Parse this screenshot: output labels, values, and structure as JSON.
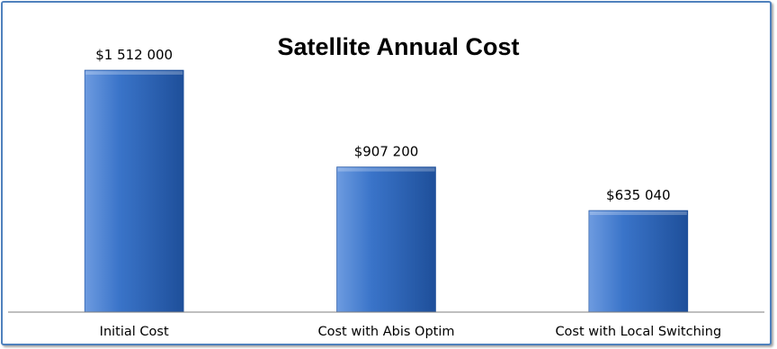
{
  "chart_data": {
    "type": "bar",
    "title": "Satellite Annual Cost",
    "categories": [
      "Initial Cost",
      "Cost with Abis Optim",
      "Cost with Local Switching"
    ],
    "values": [
      1512000,
      907200,
      635040
    ],
    "data_labels": [
      "$1 512 000",
      "$907 200",
      "$635 040"
    ],
    "xlabel": "",
    "ylabel": "",
    "ylim": [
      0,
      1700000
    ],
    "grid": false,
    "legend": "none",
    "colors": {
      "bar_light": "#6d9be0",
      "bar_mid": "#3a74c9",
      "bar_dark": "#1e4f9a",
      "frame": "#4f81bd",
      "axis": "#7f7f7f"
    }
  }
}
